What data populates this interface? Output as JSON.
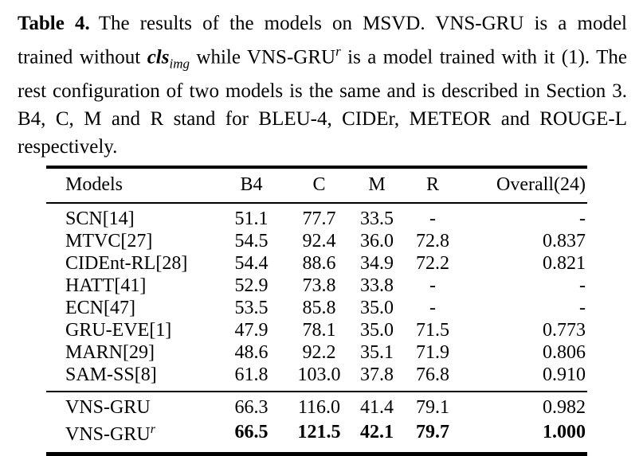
{
  "caption": {
    "label": "Table 4.",
    "part1": "The results of the models on MSVD. VNS-GRU is a model trained without ",
    "math_cls": "cls",
    "math_sub": "img",
    "part2": " while VNS-GRU",
    "sup_r": "r",
    "part3": " is a model trained with it (1). The rest configuration of two models is the same and is described in Section 3. B4, C, M and R stand for BLEU-4, CIDEr, METEOR and ROUGE-L respectively."
  },
  "table": {
    "headers": [
      "Models",
      "B4",
      "C",
      "M",
      "R",
      "Overall(24)"
    ],
    "rows": [
      {
        "model": "SCN[14]",
        "b4": "51.1",
        "c": "77.7",
        "m": "33.5",
        "r": "-",
        "overall": "-"
      },
      {
        "model": "MTVC[27]",
        "b4": "54.5",
        "c": "92.4",
        "m": "36.0",
        "r": "72.8",
        "overall": "0.837"
      },
      {
        "model": "CIDEnt-RL[28]",
        "b4": "54.4",
        "c": "88.6",
        "m": "34.9",
        "r": "72.2",
        "overall": "0.821"
      },
      {
        "model": "HATT[41]",
        "b4": "52.9",
        "c": "73.8",
        "m": "33.8",
        "r": "-",
        "overall": "-"
      },
      {
        "model": "ECN[47]",
        "b4": "53.5",
        "c": "85.8",
        "m": "35.0",
        "r": "-",
        "overall": "-"
      },
      {
        "model": "GRU-EVE[1]",
        "b4": "47.9",
        "c": "78.1",
        "m": "35.0",
        "r": "71.5",
        "overall": "0.773"
      },
      {
        "model": "MARN[29]",
        "b4": "48.6",
        "c": "92.2",
        "m": "35.1",
        "r": "71.9",
        "overall": "0.806"
      },
      {
        "model": "SAM-SS[8]",
        "b4": "61.8",
        "c": "103.0",
        "m": "37.8",
        "r": "76.8",
        "overall": "0.910"
      }
    ],
    "final_rows": [
      {
        "model": "VNS-GRU",
        "b4": "66.3",
        "c": "116.0",
        "m": "41.4",
        "r": "79.1",
        "overall": "0.982",
        "bold": false
      },
      {
        "model": "VNS-GRU",
        "model_sup": "r",
        "b4": "66.5",
        "c": "121.5",
        "m": "42.1",
        "r": "79.7",
        "overall": "1.000",
        "bold": true
      }
    ]
  }
}
